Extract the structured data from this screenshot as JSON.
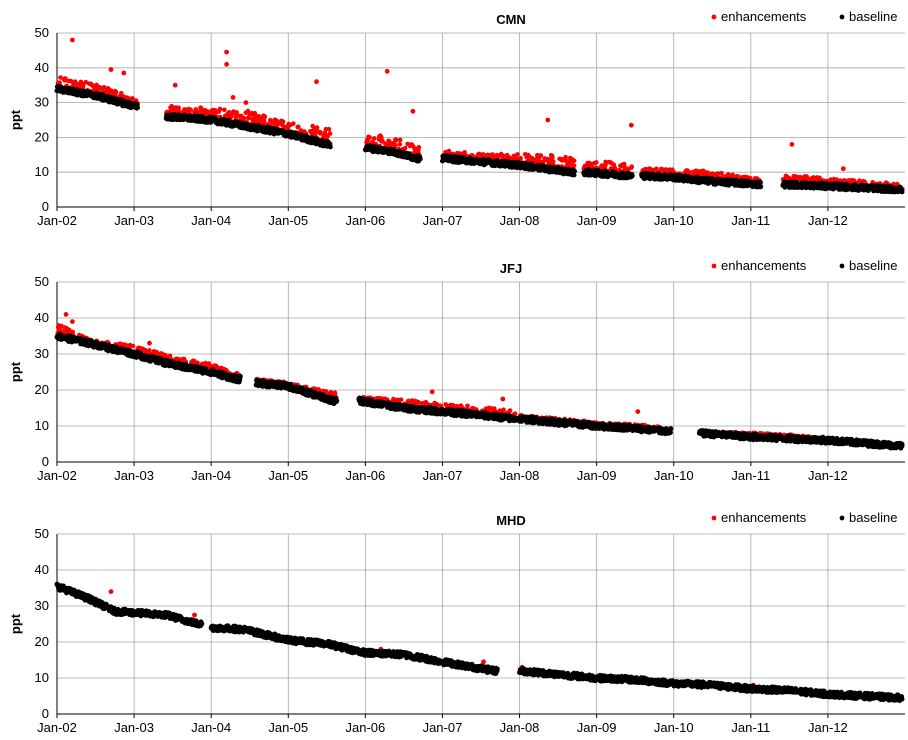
{
  "figure": {
    "units_label": "ppt"
  },
  "colors": {
    "enhancements": "#ff0000",
    "baseline": "#000000",
    "grid": "#a6a6a6"
  },
  "chart_data": [
    {
      "type": "scatter",
      "title": "CMN",
      "ylabel": "ppt",
      "xlabel": "",
      "ylim": [
        0,
        50
      ],
      "yticks": [
        0,
        10,
        20,
        30,
        40,
        50
      ],
      "xlim": [
        "2002-01",
        "2012-12"
      ],
      "xtick_labels": [
        "Jan-02",
        "Jan-03",
        "Jan-04",
        "Jan-05",
        "Jan-06",
        "Jan-07",
        "Jan-08",
        "Jan-09",
        "Jan-10",
        "Jan-11",
        "Jan-12"
      ],
      "grid": true,
      "legend": {
        "placement": "top-right",
        "entries": [
          "enhancements",
          "baseline"
        ]
      },
      "series": [
        {
          "name": "baseline",
          "segments": [
            {
              "x": [
                "2002-01",
                "2002-07",
                "2003-01"
              ],
              "y": [
                34,
                32,
                29
              ]
            },
            {
              "x": [
                "2003-06",
                "2004-01",
                "2004-07",
                "2005-01",
                "2005-07"
              ],
              "y": [
                26,
                25,
                23,
                21,
                18
              ]
            },
            {
              "x": [
                "2006-01",
                "2006-05",
                "2006-09"
              ],
              "y": [
                17,
                16,
                14
              ]
            },
            {
              "x": [
                "2007-01",
                "2007-07",
                "2008-01",
                "2008-09"
              ],
              "y": [
                14,
                13,
                12,
                10
              ]
            },
            {
              "x": [
                "2008-11",
                "2009-06"
              ],
              "y": [
                10,
                9
              ]
            },
            {
              "x": [
                "2009-08",
                "2010-01",
                "2010-06",
                "2011-02"
              ],
              "y": [
                9,
                8.5,
                7.5,
                6.5
              ]
            },
            {
              "x": [
                "2011-06",
                "2012-01",
                "2012-12"
              ],
              "y": [
                6.5,
                6,
                5
              ]
            }
          ]
        },
        {
          "name": "enhancements",
          "segments": [
            {
              "x": [
                "2002-01",
                "2002-07",
                "2003-01"
              ],
              "y": [
                37,
                35,
                31
              ]
            },
            {
              "x": [
                "2003-06",
                "2004-01",
                "2004-07",
                "2005-01",
                "2005-07"
              ],
              "y": [
                29,
                28,
                27,
                24,
                22
              ]
            },
            {
              "x": [
                "2006-01",
                "2006-05",
                "2006-09"
              ],
              "y": [
                20,
                20,
                17
              ]
            },
            {
              "x": [
                "2007-01",
                "2007-07",
                "2008-01",
                "2008-09"
              ],
              "y": [
                16,
                15,
                15,
                14
              ]
            },
            {
              "x": [
                "2008-11",
                "2009-06"
              ],
              "y": [
                13,
                12
              ]
            },
            {
              "x": [
                "2009-08",
                "2010-01",
                "2010-06",
                "2011-02"
              ],
              "y": [
                11,
                10.5,
                10,
                8
              ]
            },
            {
              "x": [
                "2011-06",
                "2012-01",
                "2012-12"
              ],
              "y": [
                9,
                8,
                6.5
              ]
            }
          ],
          "outliers": {
            "x": [
              "2002-03",
              "2002-09",
              "2002-11",
              "2004-03",
              "2004-03",
              "2004-04",
              "2005-05",
              "2006-04",
              "2006-08",
              "2008-05",
              "2009-06",
              "2011-07",
              "2012-03",
              "2003-07",
              "2004-06"
            ],
            "y": [
              48,
              39.5,
              38.5,
              44.5,
              41,
              31.5,
              36,
              39,
              27.5,
              25,
              23.5,
              18,
              11,
              35,
              30
            ]
          }
        }
      ]
    },
    {
      "type": "scatter",
      "title": "JFJ",
      "ylabel": "ppt",
      "xlabel": "",
      "ylim": [
        0,
        50
      ],
      "yticks": [
        0,
        10,
        20,
        30,
        40,
        50
      ],
      "xlim": [
        "2002-01",
        "2012-12"
      ],
      "xtick_labels": [
        "Jan-02",
        "Jan-03",
        "Jan-04",
        "Jan-05",
        "Jan-06",
        "Jan-07",
        "Jan-08",
        "Jan-09",
        "Jan-10",
        "Jan-11",
        "Jan-12"
      ],
      "grid": true,
      "legend": {
        "placement": "top-right",
        "entries": [
          "enhancements",
          "baseline"
        ]
      },
      "series": [
        {
          "name": "baseline",
          "segments": [
            {
              "x": [
                "2002-01",
                "2002-06",
                "2003-01",
                "2003-07",
                "2004-01",
                "2004-05"
              ],
              "y": [
                35,
                33,
                30,
                27,
                25,
                23
              ]
            },
            {
              "x": [
                "2004-08",
                "2005-01",
                "2005-08"
              ],
              "y": [
                22,
                21,
                17
              ]
            },
            {
              "x": [
                "2005-12",
                "2006-07",
                "2007-01",
                "2007-07",
                "2007-12"
              ],
              "y": [
                17,
                15,
                14,
                13,
                12
              ]
            },
            {
              "x": [
                "2008-01",
                "2008-07",
                "2009-01",
                "2009-06",
                "2009-12"
              ],
              "y": [
                12,
                11,
                10,
                9.5,
                8.5
              ]
            },
            {
              "x": [
                "2010-05",
                "2011-01",
                "2011-07",
                "2012-01",
                "2012-12"
              ],
              "y": [
                8,
                7,
                6.5,
                6,
                4.5
              ]
            }
          ]
        },
        {
          "name": "enhancements",
          "segments": [
            {
              "x": [
                "2002-01",
                "2002-06",
                "2003-01",
                "2003-07",
                "2004-01",
                "2004-05"
              ],
              "y": [
                38,
                34,
                32,
                29,
                27,
                25
              ]
            },
            {
              "x": [
                "2004-08",
                "2005-01",
                "2005-08"
              ],
              "y": [
                23,
                22,
                19
              ]
            },
            {
              "x": [
                "2005-12",
                "2006-07",
                "2007-01",
                "2007-07",
                "2007-12"
              ],
              "y": [
                18,
                17,
                16,
                15,
                14
              ]
            },
            {
              "x": [
                "2008-01",
                "2008-07",
                "2009-01",
                "2009-06",
                "2009-12"
              ],
              "y": [
                13,
                12,
                11,
                10.5,
                9.5
              ]
            },
            {
              "x": [
                "2010-05",
                "2011-01",
                "2011-07",
                "2012-01",
                "2012-12"
              ],
              "y": [
                8.5,
                8,
                7.5,
                6.5,
                5
              ]
            }
          ],
          "outliers": {
            "x": [
              "2002-02",
              "2002-03",
              "2003-03",
              "2006-11",
              "2007-10",
              "2009-07"
            ],
            "y": [
              41,
              39,
              33,
              19.5,
              17.5,
              14
            ]
          }
        }
      ]
    },
    {
      "type": "scatter",
      "title": "MHD",
      "ylabel": "ppt",
      "xlabel": "",
      "ylim": [
        0,
        50
      ],
      "yticks": [
        0,
        10,
        20,
        30,
        40,
        50
      ],
      "xlim": [
        "2002-01",
        "2012-12"
      ],
      "xtick_labels": [
        "Jan-02",
        "Jan-03",
        "Jan-04",
        "Jan-05",
        "Jan-06",
        "Jan-07",
        "Jan-08",
        "Jan-09",
        "Jan-10",
        "Jan-11",
        "Jan-12"
      ],
      "grid": true,
      "legend": {
        "placement": "top-right",
        "entries": [
          "enhancements",
          "baseline"
        ]
      },
      "series": [
        {
          "name": "baseline",
          "segments": [
            {
              "x": [
                "2002-01",
                "2002-06",
                "2002-10",
                "2003-06",
                "2003-11"
              ],
              "y": [
                35.5,
                32,
                28.5,
                27.5,
                25
              ]
            },
            {
              "x": [
                "2004-01",
                "2004-06",
                "2005-01",
                "2005-07",
                "2006-01",
                "2006-07",
                "2007-01",
                "2007-09"
              ],
              "y": [
                24,
                23.5,
                20.5,
                19.5,
                17,
                16.5,
                14.5,
                12
              ]
            },
            {
              "x": [
                "2008-01",
                "2008-07",
                "2009-01",
                "2009-07",
                "2010-01",
                "2010-07",
                "2011-01",
                "2011-07",
                "2012-01",
                "2012-12"
              ],
              "y": [
                12,
                11,
                10,
                9.5,
                8.5,
                8,
                7,
                6.5,
                5.5,
                4.5
              ]
            }
          ]
        },
        {
          "name": "enhancements",
          "segments": [],
          "outliers": {
            "x": [
              "2002-09",
              "2003-10",
              "2006-03",
              "2007-07",
              "2008-01",
              "2011-01"
            ],
            "y": [
              34,
              27.5,
              18,
              14.5,
              13,
              8
            ]
          }
        }
      ]
    }
  ]
}
